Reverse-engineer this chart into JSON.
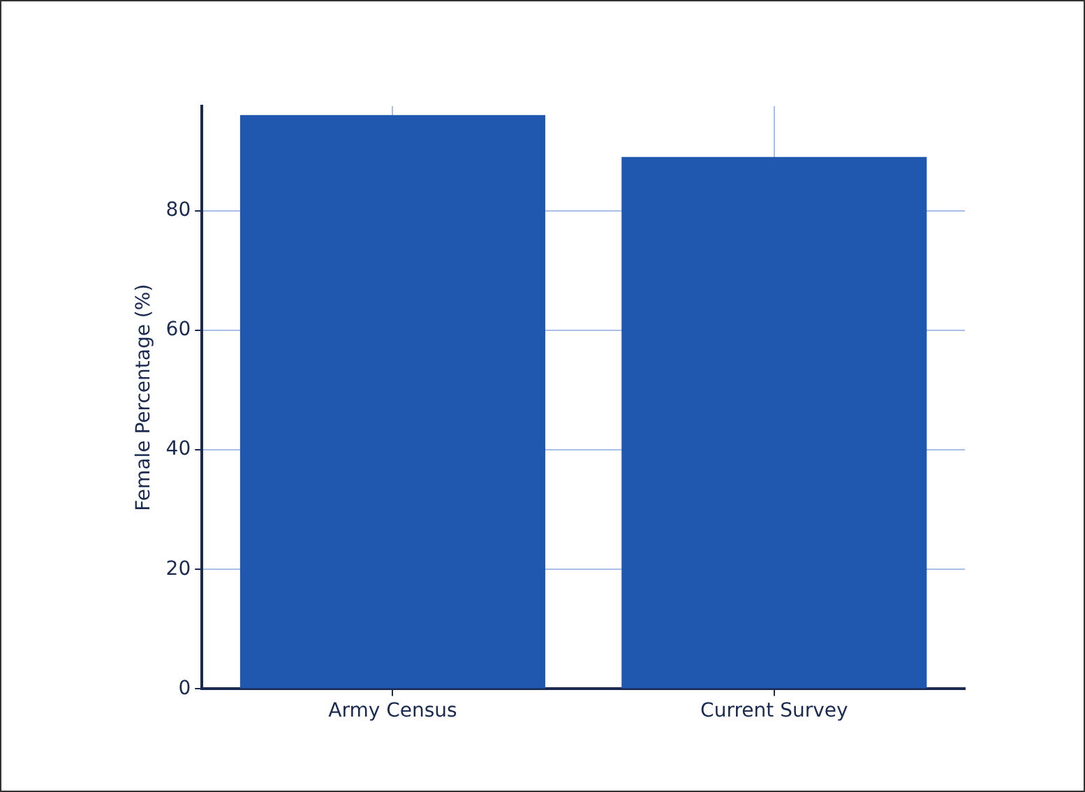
{
  "chart_data": {
    "type": "bar",
    "ylabel": "Female Percentage (%)",
    "categories": [
      "Army Census",
      "Current Survey"
    ],
    "values": [
      96,
      89
    ],
    "color": "#2058b0",
    "ylim": [
      0,
      97.5
    ],
    "yticks": [
      0,
      20,
      40,
      60,
      80
    ],
    "grid": true
  }
}
